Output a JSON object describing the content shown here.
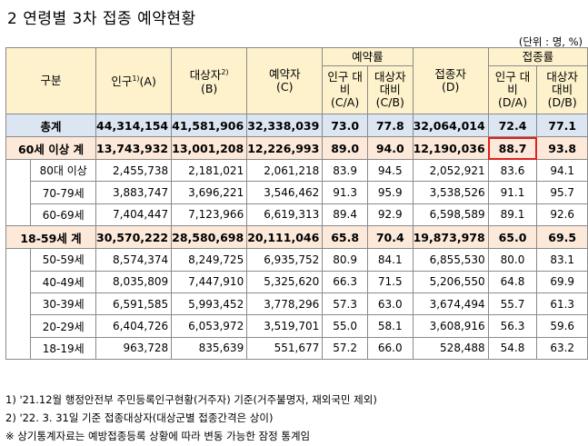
{
  "title": "2 연령별 3차 접종 예약현황",
  "unit": "(단위 : 명, %)",
  "headers": {
    "group": "구분",
    "population": "인구",
    "population_sup": "1)",
    "population_code": "(A)",
    "target": "대상자",
    "target_sup": "2)",
    "target_code": "(B)",
    "reserved": "예약자",
    "reserved_code": "(C)",
    "reservation_rate": "예약률",
    "res_pop": "인구 대비 (C/A)",
    "res_target": "대상자 대비 (C/B)",
    "vaccinated": "접종자",
    "vaccinated_code": "(D)",
    "vaccination_rate": "접종률",
    "vac_pop": "인구 대비 (D/A)",
    "vac_target": "대상자 대비 (D/B)"
  },
  "rows": [
    {
      "type": "total",
      "label": "총계",
      "pop": "44,314,154",
      "target": "41,581,906",
      "reserved": "32,338,039",
      "rc_a": "73.0",
      "rc_b": "77.8",
      "vac": "32,064,014",
      "vd_a": "72.4",
      "vd_b": "77.1"
    },
    {
      "type": "grp",
      "label": "60세 이상 계",
      "pop": "13,743,932",
      "target": "13,001,208",
      "reserved": "12,226,993",
      "rc_a": "89.0",
      "rc_b": "94.0",
      "vac": "12,190,036",
      "vd_a": "88.7",
      "vd_b": "93.8"
    },
    {
      "type": "sub",
      "label": "80대 이상",
      "pop": "2,455,738",
      "target": "2,181,021",
      "reserved": "2,061,218",
      "rc_a": "83.9",
      "rc_b": "94.5",
      "vac": "2,052,921",
      "vd_a": "83.6",
      "vd_b": "94.1"
    },
    {
      "type": "sub",
      "label": "70-79세",
      "pop": "3,883,747",
      "target": "3,696,221",
      "reserved": "3,546,462",
      "rc_a": "91.3",
      "rc_b": "95.9",
      "vac": "3,538,526",
      "vd_a": "91.1",
      "vd_b": "95.7"
    },
    {
      "type": "sub",
      "label": "60-69세",
      "pop": "7,404,447",
      "target": "7,123,966",
      "reserved": "6,619,313",
      "rc_a": "89.4",
      "rc_b": "92.9",
      "vac": "6,598,589",
      "vd_a": "89.1",
      "vd_b": "92.6"
    },
    {
      "type": "grp",
      "label": "18-59세 계",
      "pop": "30,570,222",
      "target": "28,580,698",
      "reserved": "20,111,046",
      "rc_a": "65.8",
      "rc_b": "70.4",
      "vac": "19,873,978",
      "vd_a": "65.0",
      "vd_b": "69.5"
    },
    {
      "type": "sub",
      "label": "50-59세",
      "pop": "8,574,374",
      "target": "8,249,725",
      "reserved": "6,935,752",
      "rc_a": "80.9",
      "rc_b": "84.1",
      "vac": "6,855,530",
      "vd_a": "80.0",
      "vd_b": "83.1"
    },
    {
      "type": "sub",
      "label": "40-49세",
      "pop": "8,035,809",
      "target": "7,447,910",
      "reserved": "5,325,620",
      "rc_a": "66.3",
      "rc_b": "71.5",
      "vac": "5,206,550",
      "vd_a": "64.8",
      "vd_b": "69.9"
    },
    {
      "type": "sub",
      "label": "30-39세",
      "pop": "6,591,585",
      "target": "5,993,452",
      "reserved": "3,778,296",
      "rc_a": "57.3",
      "rc_b": "63.0",
      "vac": "3,674,494",
      "vd_a": "55.7",
      "vd_b": "61.3"
    },
    {
      "type": "sub",
      "label": "20-29세",
      "pop": "6,404,726",
      "target": "6,053,972",
      "reserved": "3,519,701",
      "rc_a": "55.0",
      "rc_b": "58.1",
      "vac": "3,608,916",
      "vd_a": "56.3",
      "vd_b": "59.6"
    },
    {
      "type": "sub",
      "label": "18-19세",
      "pop": "963,728",
      "target": "835,639",
      "reserved": "551,677",
      "rc_a": "57.2",
      "rc_b": "66.0",
      "vac": "528,488",
      "vd_a": "54.8",
      "vd_b": "63.2"
    }
  ],
  "notes": [
    "1) '21.12월 행정안전부 주민등록인구현황(거주자) 기준(거주불명자, 재외국민 제외)",
    "2) '22. 3. 31일 기준 접종대상자(대상군별 접종간격은 상이)",
    "※ 상기통계자료는 예방접종등록 상황에 따라 변동 가능한 잠정 통계임"
  ],
  "colors": {
    "header_bg": "#fdf2cc",
    "total_bg": "#dce6f2",
    "group_bg": "#fde9d9",
    "highlight": "#e02020"
  }
}
